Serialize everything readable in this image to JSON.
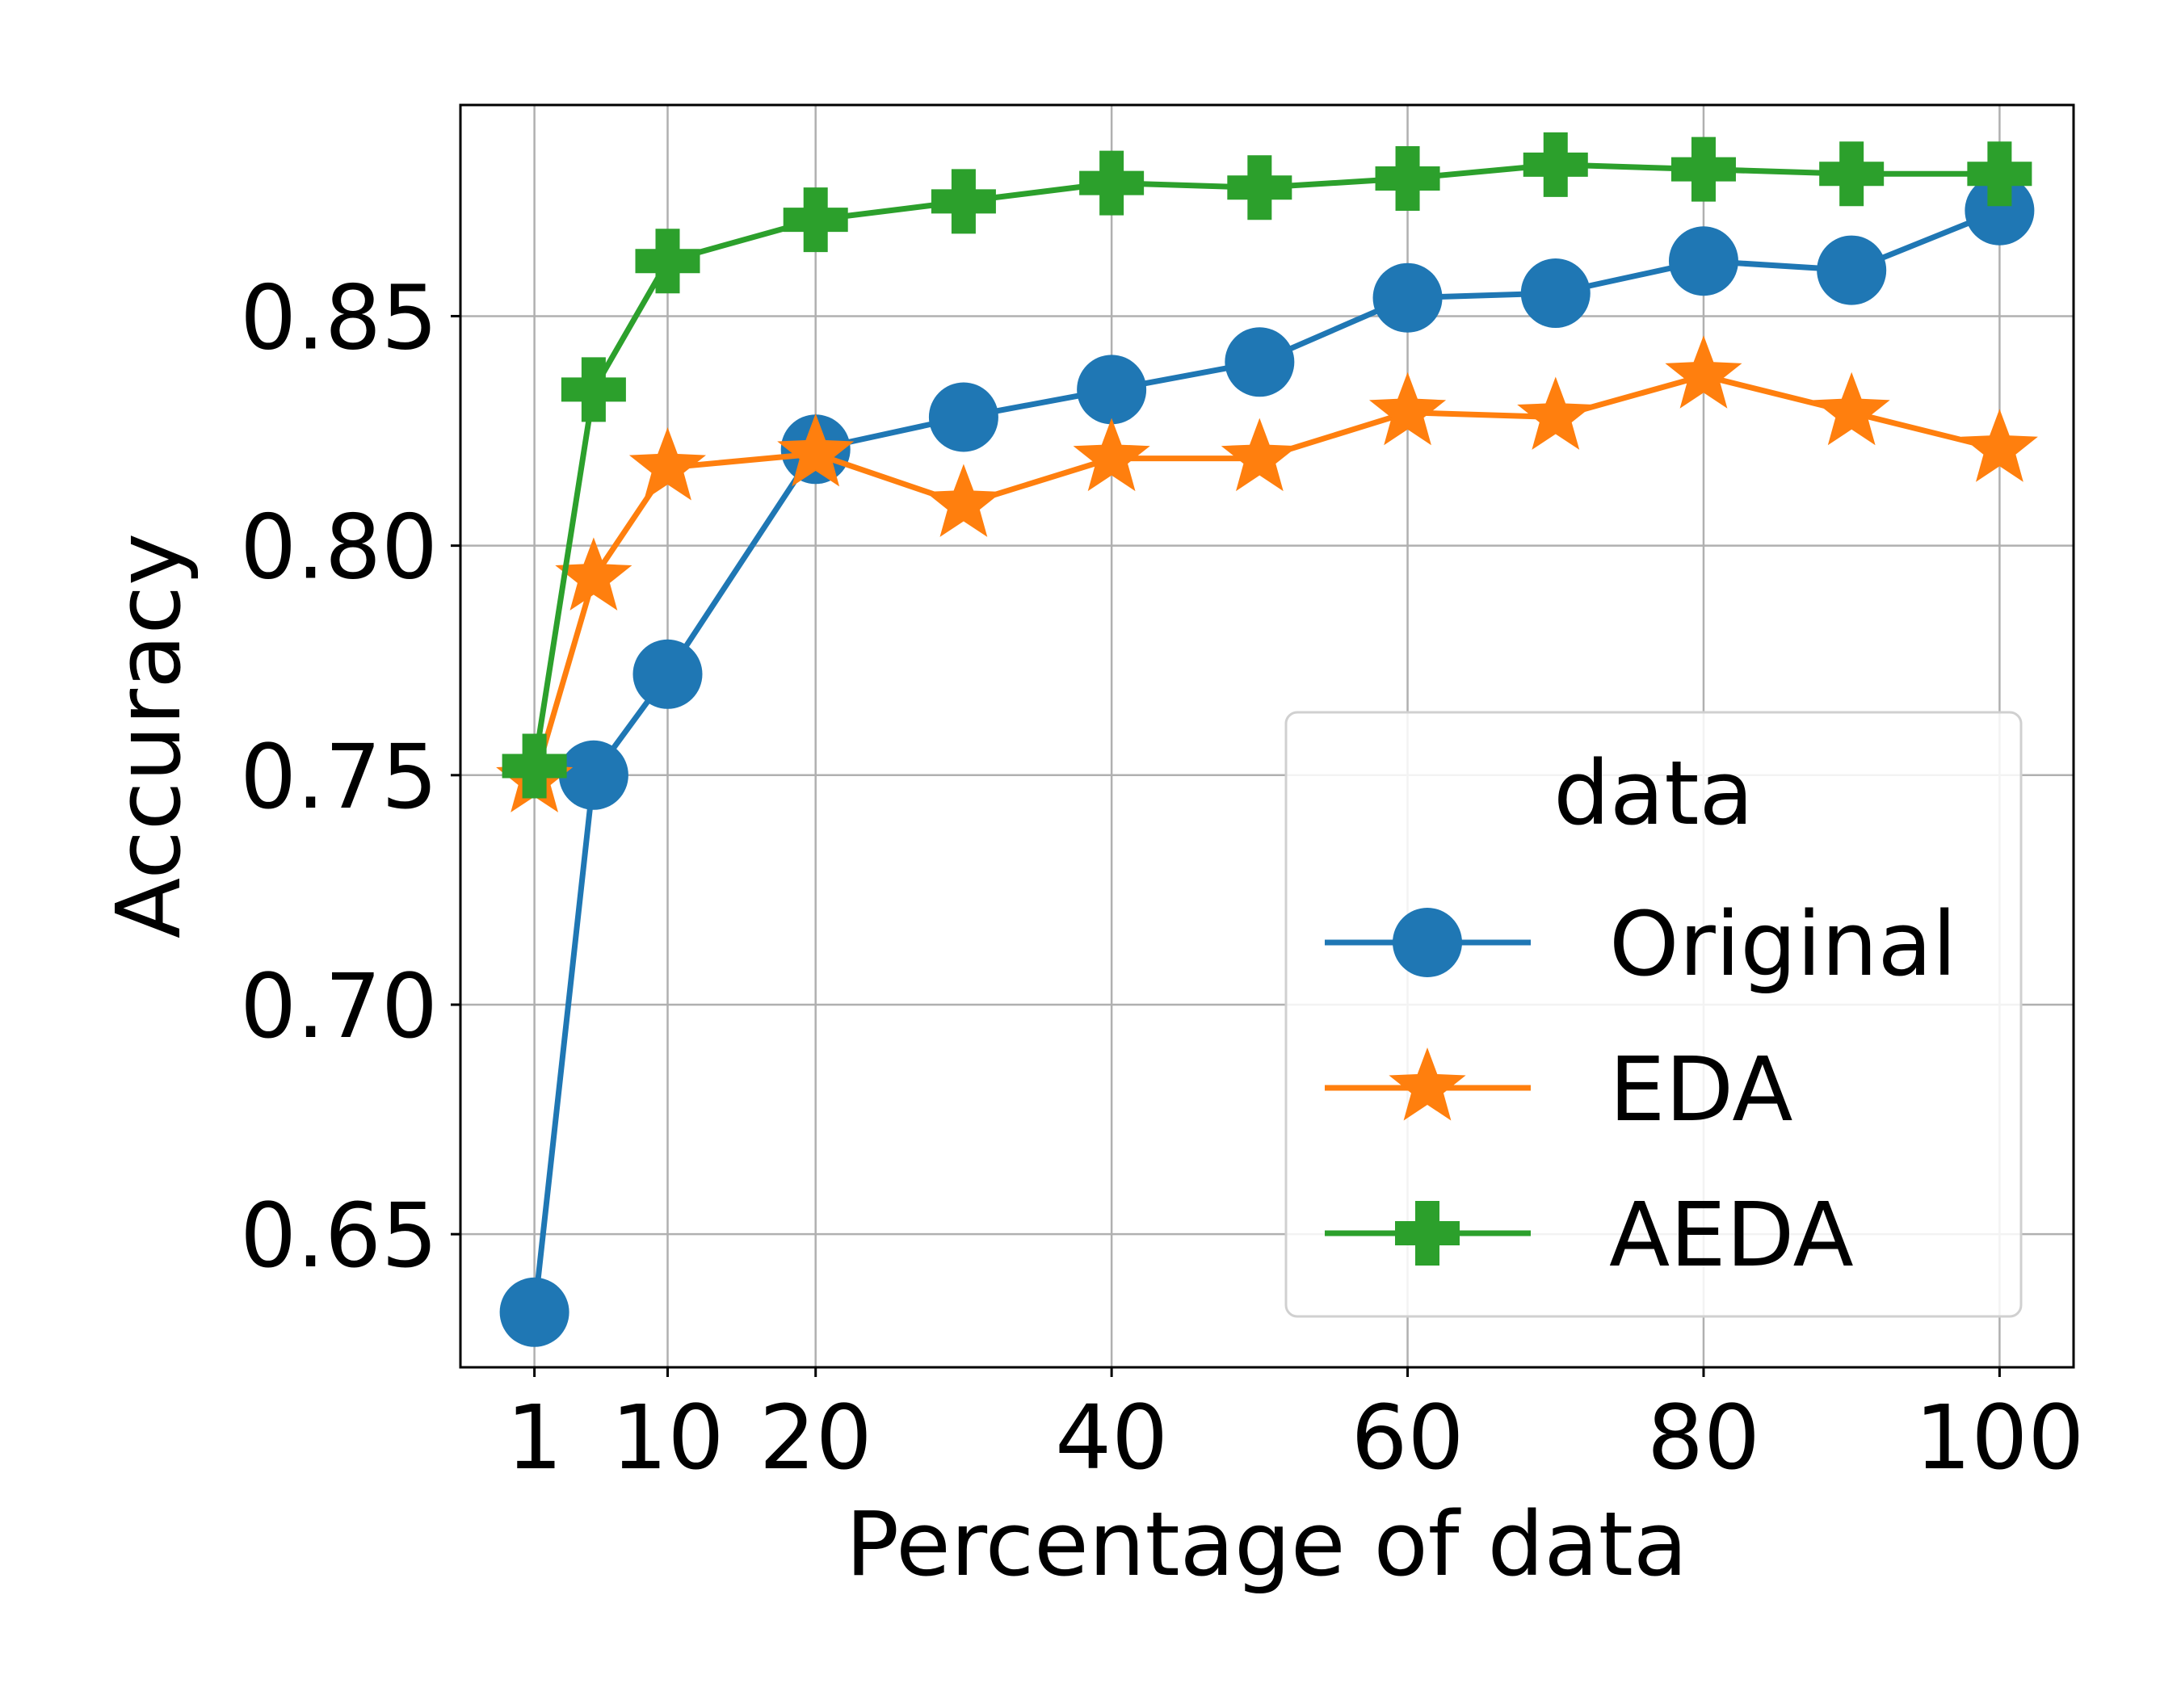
{
  "chart_data": {
    "type": "line",
    "xlabel": "Percentage of data",
    "ylabel": "Accuracy",
    "xlim": [
      -4,
      105
    ],
    "ylim": [
      0.621,
      0.896
    ],
    "xticks": [
      1,
      10,
      20,
      40,
      60,
      80,
      100
    ],
    "xtick_labels": [
      "1",
      "10",
      "20",
      "40",
      "60",
      "80",
      "100"
    ],
    "yticks": [
      0.65,
      0.7,
      0.75,
      0.8,
      0.85
    ],
    "ytick_labels": [
      "0.65",
      "0.70",
      "0.75",
      "0.80",
      "0.85"
    ],
    "grid": true,
    "legend": {
      "title": "data",
      "placement": "center-right"
    },
    "x": [
      1,
      5,
      10,
      20,
      30,
      40,
      50,
      60,
      70,
      80,
      90,
      100
    ],
    "series": [
      {
        "name": "Original",
        "color": "#1f77b4",
        "marker": "circle",
        "values": [
          0.633,
          0.75,
          0.772,
          0.821,
          0.828,
          0.834,
          0.84,
          0.854,
          0.855,
          0.862,
          0.86,
          0.873
        ]
      },
      {
        "name": "EDA",
        "color": "#ff7f0e",
        "marker": "star",
        "values": [
          0.749,
          0.793,
          0.817,
          0.82,
          0.809,
          0.819,
          0.819,
          0.829,
          0.828,
          0.837,
          0.829,
          0.821
        ]
      },
      {
        "name": "AEDA",
        "color": "#2ca02c",
        "marker": "plus",
        "values": [
          0.752,
          0.834,
          0.862,
          0.871,
          0.875,
          0.879,
          0.878,
          0.88,
          0.883,
          0.882,
          0.881,
          0.881
        ]
      }
    ]
  }
}
